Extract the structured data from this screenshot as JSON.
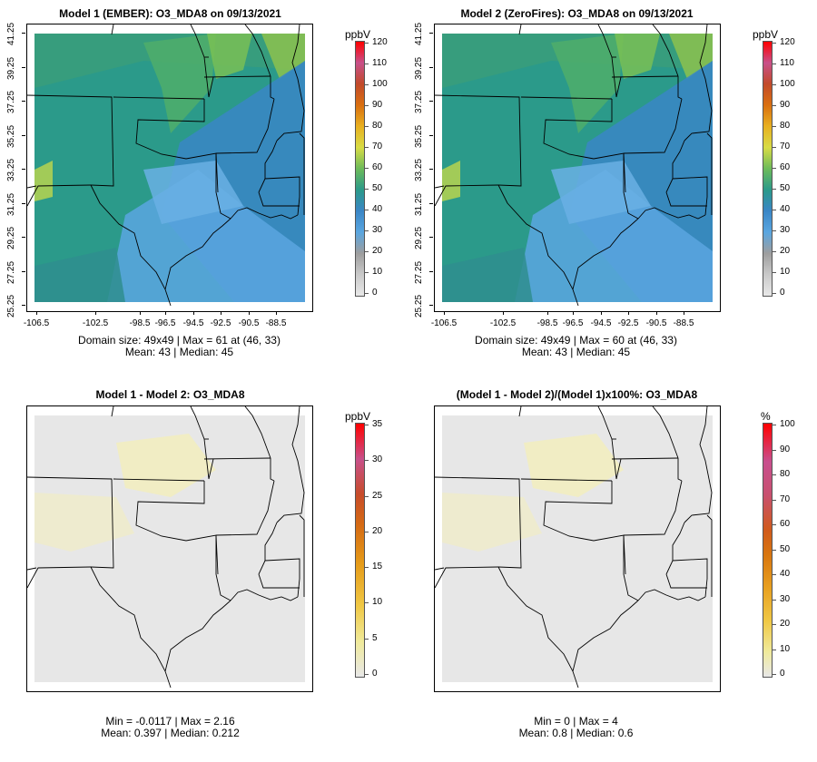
{
  "panels": [
    {
      "title": "Model 1 (EMBER): O3_MDA8 on 09/13/2021",
      "kind": "abs",
      "has_axes": true,
      "unit": "ppbV",
      "colorbar_labels": [
        "120",
        "110",
        "100",
        "90",
        "80",
        "70",
        "60",
        "50",
        "40",
        "30",
        "20",
        "10",
        "0"
      ],
      "stats_line1": "Domain size: 49x49 | Max = 61 at (46, 33)",
      "stats_line2": "Mean: 43 |  Median: 45"
    },
    {
      "title": "Model 2 (ZeroFires): O3_MDA8 on 09/13/2021",
      "kind": "abs",
      "has_axes": true,
      "unit": "ppbV",
      "colorbar_labels": [
        "120",
        "110",
        "100",
        "90",
        "80",
        "70",
        "60",
        "50",
        "40",
        "30",
        "20",
        "10",
        "0"
      ],
      "stats_line1": "Domain size: 49x49 | Max = 60 at (46, 33)",
      "stats_line2": "Mean: 43 |  Median: 45"
    },
    {
      "title": "Model 1 - Model 2: O3_MDA8",
      "kind": "diff",
      "has_axes": false,
      "unit": "ppbV",
      "colorbar_labels": [
        "35",
        "30",
        "25",
        "20",
        "15",
        "10",
        "5",
        "0"
      ],
      "stats_line1": "Min = -0.0117 | Max = 2.16",
      "stats_line2": "Mean: 0.397 |  Median: 0.212"
    },
    {
      "title": "(Model 1 - Model 2)/(Model 1)x100%: O3_MDA8",
      "kind": "pct",
      "has_axes": false,
      "unit": "%",
      "colorbar_labels": [
        "100",
        "90",
        "80",
        "70",
        "60",
        "50",
        "40",
        "30",
        "20",
        "10",
        "0"
      ],
      "stats_line1": "Min = 0 | Max = 4",
      "stats_line2": "Mean: 0.8 |  Median: 0.6"
    }
  ],
  "axes": {
    "lat_ticks": [
      "41.25",
      "39.25",
      "37.25",
      "35.25",
      "33.25",
      "31.25",
      "29.25",
      "27.25",
      "25.25"
    ],
    "lon_ticks": [
      "-106.5",
      "-102.5",
      "-98.5",
      "-96.5",
      "-94.5",
      "-92.5",
      "-90.5",
      "-88.5"
    ]
  },
  "colors": {
    "abs_scale": [
      "#e8e8e8",
      "#c9c9c9",
      "#9e9e9e",
      "#5aa6e0",
      "#3a86c6",
      "#2b9a8a",
      "#6dbb5a",
      "#d8dc45",
      "#e8b020",
      "#d96f10",
      "#c24a2a",
      "#c8508a",
      "#ff0000"
    ],
    "diff_background": "#e7e7e7",
    "diff_tint": "#f1edc4",
    "border": "#000000"
  }
}
